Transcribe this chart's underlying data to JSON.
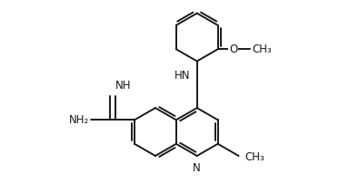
{
  "bg_color": "#ffffff",
  "line_color": "#1a1a1a",
  "line_width": 1.4,
  "font_size": 8.5,
  "xlim": [
    -2.5,
    9.5
  ],
  "ylim": [
    -3.2,
    5.2
  ]
}
